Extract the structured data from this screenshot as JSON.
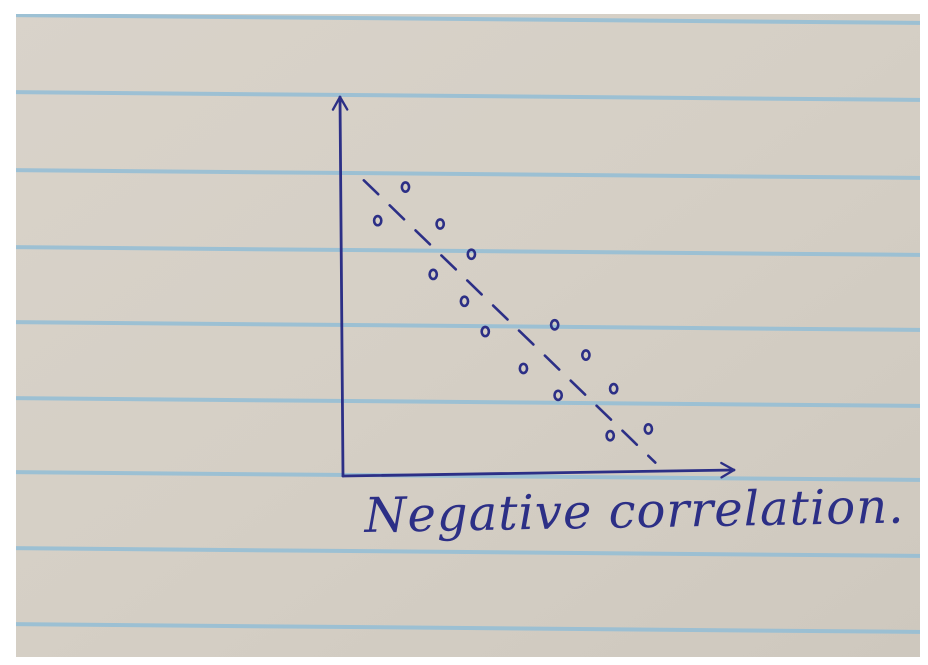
{
  "colors": {
    "paper": "#d6d0c6",
    "rule_line": "#93bed6",
    "ink": "#2c2f86"
  },
  "chart_data": {
    "type": "scatter",
    "title": "Negative correlation.",
    "xlabel": "",
    "ylabel": "",
    "xlim": [
      0,
      10
    ],
    "ylim": [
      0,
      10
    ],
    "grid": false,
    "axis_ticks": false,
    "points": [
      {
        "x": 1.0,
        "y": 7.6
      },
      {
        "x": 1.8,
        "y": 8.6
      },
      {
        "x": 2.6,
        "y": 6.0
      },
      {
        "x": 2.8,
        "y": 7.5
      },
      {
        "x": 3.5,
        "y": 5.2
      },
      {
        "x": 3.7,
        "y": 6.6
      },
      {
        "x": 4.1,
        "y": 4.3
      },
      {
        "x": 5.2,
        "y": 3.2
      },
      {
        "x": 6.1,
        "y": 4.5
      },
      {
        "x": 6.2,
        "y": 2.4
      },
      {
        "x": 7.0,
        "y": 3.6
      },
      {
        "x": 7.7,
        "y": 1.2
      },
      {
        "x": 7.8,
        "y": 2.6
      },
      {
        "x": 8.8,
        "y": 1.4
      }
    ],
    "trendline": {
      "style": "dashed",
      "from": {
        "x": 0.6,
        "y": 8.8
      },
      "to": {
        "x": 9.0,
        "y": 0.4
      }
    }
  }
}
